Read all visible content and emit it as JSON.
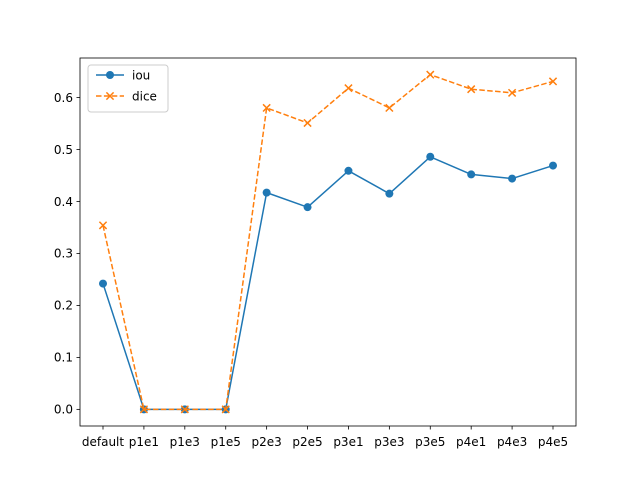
{
  "chart_data": {
    "type": "line",
    "title": "",
    "xlabel": "",
    "ylabel": "",
    "categories": [
      "default",
      "p1e1",
      "p1e3",
      "p1e5",
      "p2e3",
      "p2e5",
      "p3e1",
      "p3e3",
      "p3e5",
      "p4e1",
      "p4e3",
      "p4e5"
    ],
    "series": [
      {
        "name": "iou",
        "color": "#1f77b4",
        "marker": "circle",
        "linestyle": "solid",
        "values": [
          0.242,
          0.0,
          0.0,
          0.0,
          0.417,
          0.389,
          0.459,
          0.415,
          0.486,
          0.452,
          0.444,
          0.469
        ]
      },
      {
        "name": "dice",
        "color": "#ff7f0e",
        "marker": "x",
        "linestyle": "dashed",
        "values": [
          0.354,
          0.0,
          0.0,
          0.0,
          0.58,
          0.551,
          0.618,
          0.58,
          0.644,
          0.616,
          0.609,
          0.631
        ]
      }
    ],
    "yticks": [
      "0.0",
      "0.1",
      "0.2",
      "0.3",
      "0.4",
      "0.5",
      "0.6"
    ],
    "ylim": [
      -0.032,
      0.676
    ],
    "grid": false,
    "legend_position": "upper-left"
  }
}
